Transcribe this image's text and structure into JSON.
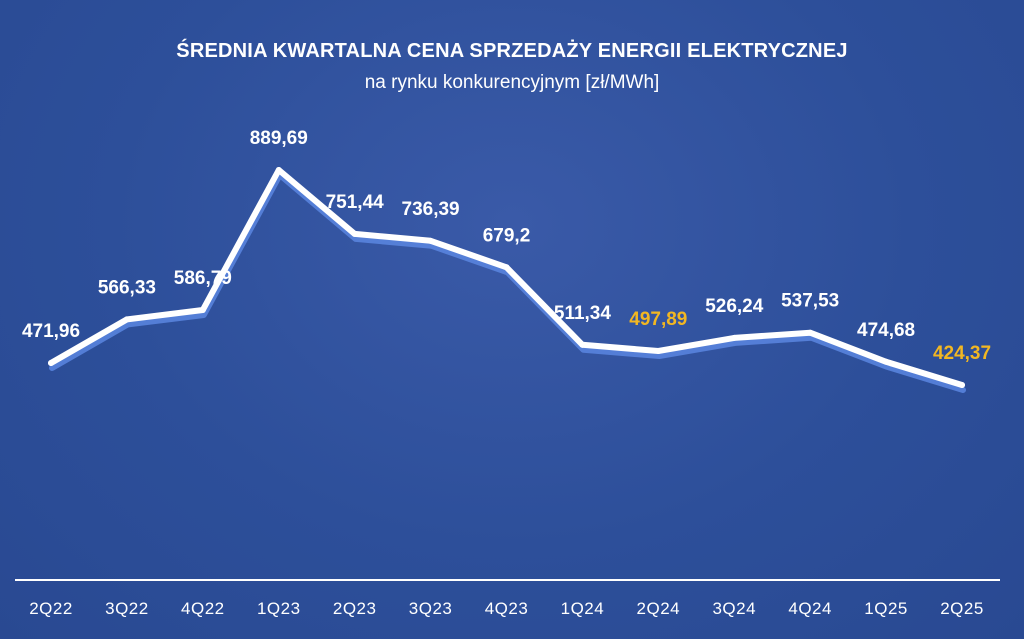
{
  "chart_data": {
    "type": "line",
    "title": "ŚREDNIA KWARTALNA CENA SPRZEDAŻY ENERGII ELEKTRYCZNEJ",
    "subtitle": "na rynku konkurencyjnym [zł/MWh]",
    "categories": [
      "2Q22",
      "3Q22",
      "4Q22",
      "1Q23",
      "2Q23",
      "3Q23",
      "4Q23",
      "1Q24",
      "2Q24",
      "3Q24",
      "4Q24",
      "1Q25",
      "2Q25"
    ],
    "values": [
      471.96,
      566.33,
      586.79,
      889.69,
      751.44,
      736.39,
      679.2,
      511.34,
      497.89,
      526.24,
      537.53,
      474.68,
      424.37
    ],
    "data_labels": [
      "471,96",
      "566,33",
      "586,79",
      "889,69",
      "751,44",
      "736,39",
      "679,2",
      "511,34",
      "497,89",
      "526,24",
      "537,53",
      "474,68",
      "424,37"
    ],
    "highlighted": [
      false,
      false,
      false,
      false,
      false,
      false,
      false,
      false,
      true,
      false,
      false,
      false,
      true
    ],
    "xlabel": "",
    "ylabel": "",
    "grid": false,
    "colors": {
      "background": "#2d4f9a",
      "line": "#ffffff",
      "line_shadow": "#5a86e0",
      "label": "#ffffff",
      "highlight_label": "#f2b722"
    }
  }
}
